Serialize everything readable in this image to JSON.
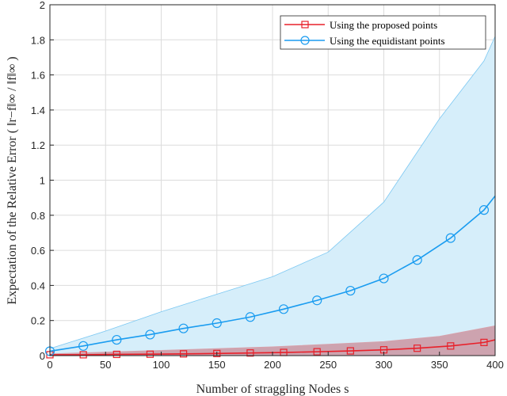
{
  "chart_data": {
    "type": "line",
    "title": "",
    "xlabel": "Number of straggling Nodes s",
    "ylabel": "Expectation of the Relative Error ( ‖r−f‖∞ / ‖f‖∞ )",
    "xlim": [
      0,
      400
    ],
    "ylim": [
      0,
      2
    ],
    "xticks": [
      0,
      50,
      100,
      150,
      200,
      250,
      300,
      350,
      400
    ],
    "yticks": [
      0,
      0.2,
      0.4,
      0.6,
      0.8,
      1,
      1.2,
      1.4,
      1.6,
      1.8,
      2
    ],
    "grid": true,
    "legend_position": "top-right",
    "x": [
      0,
      30,
      60,
      90,
      120,
      150,
      180,
      210,
      240,
      270,
      300,
      330,
      360,
      390,
      400
    ],
    "series": [
      {
        "name": "Using the proposed points",
        "color": "#e8202a",
        "fill": "#c98a96",
        "marker": "square",
        "values": [
          0.005,
          0.005,
          0.007,
          0.008,
          0.01,
          0.012,
          0.015,
          0.018,
          0.022,
          0.027,
          0.033,
          0.042,
          0.055,
          0.075,
          0.09
        ],
        "band_x": [
          0,
          50,
          100,
          150,
          200,
          250,
          300,
          350,
          400
        ],
        "band_upper": [
          0.01,
          0.02,
          0.03,
          0.04,
          0.05,
          0.065,
          0.08,
          0.11,
          0.17
        ],
        "band_lower": [
          0,
          0,
          0,
          0,
          0,
          0,
          0,
          0,
          0
        ]
      },
      {
        "name": "Using the equidistant points",
        "color": "#1a9cf0",
        "fill": "#d6eefa",
        "marker": "circle",
        "values": [
          0.025,
          0.055,
          0.09,
          0.12,
          0.155,
          0.185,
          0.22,
          0.265,
          0.315,
          0.37,
          0.44,
          0.545,
          0.67,
          0.83,
          0.91
        ],
        "band_x": [
          0,
          50,
          100,
          150,
          200,
          250,
          300,
          350,
          390,
          400
        ],
        "band_upper": [
          0.04,
          0.14,
          0.25,
          0.35,
          0.45,
          0.59,
          0.875,
          1.35,
          1.68,
          1.82
        ],
        "band_lower": [
          0,
          0,
          0,
          0,
          0,
          0,
          0,
          0,
          0,
          0
        ]
      }
    ]
  }
}
